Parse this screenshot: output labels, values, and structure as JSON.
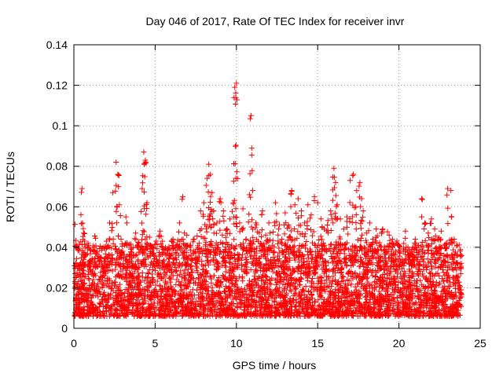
{
  "chart_data": {
    "type": "scatter",
    "title": "Day 046 of 2017, Rate Of TEC Index for receiver invr",
    "xlabel": "GPS time / hours",
    "ylabel": "ROTI / TECUs",
    "xlim": [
      0,
      25
    ],
    "ylim": [
      0,
      0.14
    ],
    "xticks": [
      0,
      5,
      10,
      15,
      20,
      25
    ],
    "yticks": [
      0,
      0.02,
      0.04,
      0.06,
      0.08,
      0.1,
      0.12,
      0.14
    ],
    "xtick_labels": [
      "0",
      "5",
      "10",
      "15",
      "20",
      "25"
    ],
    "ytick_labels": [
      "0",
      "0.02",
      "0.04",
      "0.06",
      "0.08",
      "0.1",
      "0.12",
      "0.14"
    ],
    "grid": true,
    "marker": "+",
    "color": "#ff0000",
    "series": [
      {
        "name": "ROTI",
        "description_of_density": "dense band of samples between 0.005 and 0.045 TECU/s across 0-23.8 h",
        "x": [
          0.1,
          0.3,
          0.5,
          0.6,
          0.7,
          0.9,
          1.0,
          1.2,
          1.4,
          1.6,
          1.8,
          2.0,
          2.2,
          2.4,
          2.6,
          2.7,
          2.8,
          2.9,
          3.0,
          3.2,
          3.4,
          3.6,
          3.8,
          4.0,
          4.2,
          4.3,
          4.4,
          4.5,
          4.7,
          4.9,
          5.1,
          5.3,
          5.5,
          5.7,
          5.9,
          6.1,
          6.3,
          6.5,
          6.7,
          6.8,
          7.0,
          7.2,
          7.4,
          7.6,
          7.8,
          8.0,
          8.2,
          8.3,
          8.4,
          8.5,
          8.6,
          8.8,
          9.0,
          9.2,
          9.4,
          9.6,
          9.8,
          9.9,
          10.0,
          10.2,
          10.4,
          10.6,
          10.8,
          10.9,
          11.0,
          11.2,
          11.4,
          11.6,
          11.8,
          12.0,
          12.2,
          12.4,
          12.6,
          12.8,
          13.0,
          13.2,
          13.4,
          13.6,
          13.8,
          14.0,
          14.2,
          14.4,
          14.6,
          14.8,
          15.0,
          15.2,
          15.4,
          15.6,
          15.8,
          16.0,
          16.1,
          16.2,
          16.4,
          16.6,
          16.8,
          17.0,
          17.2,
          17.4,
          17.6,
          17.7,
          17.8,
          18.0,
          18.2,
          18.4,
          18.6,
          18.8,
          19.0,
          19.2,
          19.4,
          19.6,
          19.8,
          20.0,
          20.2,
          20.4,
          20.6,
          20.8,
          21.0,
          21.2,
          21.4,
          21.6,
          21.8,
          22.0,
          22.2,
          22.4,
          22.6,
          22.8,
          23.0,
          23.2,
          23.4,
          23.6,
          23.8
        ],
        "y": [
          0.025,
          0.031,
          0.069,
          0.047,
          0.036,
          0.028,
          0.033,
          0.024,
          0.021,
          0.035,
          0.029,
          0.031,
          0.052,
          0.067,
          0.082,
          0.076,
          0.061,
          0.044,
          0.038,
          0.055,
          0.034,
          0.031,
          0.047,
          0.042,
          0.069,
          0.087,
          0.083,
          0.062,
          0.041,
          0.037,
          0.034,
          0.048,
          0.039,
          0.031,
          0.036,
          0.044,
          0.041,
          0.052,
          0.065,
          0.047,
          0.041,
          0.036,
          0.044,
          0.039,
          0.058,
          0.062,
          0.074,
          0.081,
          0.076,
          0.067,
          0.058,
          0.052,
          0.064,
          0.058,
          0.049,
          0.054,
          0.062,
          0.119,
          0.121,
          0.052,
          0.059,
          0.044,
          0.066,
          0.105,
          0.068,
          0.052,
          0.047,
          0.058,
          0.046,
          0.052,
          0.041,
          0.062,
          0.049,
          0.044,
          0.057,
          0.051,
          0.068,
          0.061,
          0.064,
          0.058,
          0.052,
          0.061,
          0.056,
          0.065,
          0.062,
          0.054,
          0.049,
          0.051,
          0.058,
          0.079,
          0.072,
          0.061,
          0.054,
          0.049,
          0.055,
          0.073,
          0.076,
          0.068,
          0.072,
          0.064,
          0.058,
          0.047,
          0.052,
          0.044,
          0.049,
          0.041,
          0.049,
          0.039,
          0.046,
          0.044,
          0.038,
          0.041,
          0.034,
          0.048,
          0.036,
          0.039,
          0.044,
          0.041,
          0.064,
          0.052,
          0.047,
          0.054,
          0.049,
          0.044,
          0.048,
          0.041,
          0.069,
          0.068,
          0.044,
          0.036,
          0.027
        ]
      }
    ]
  }
}
